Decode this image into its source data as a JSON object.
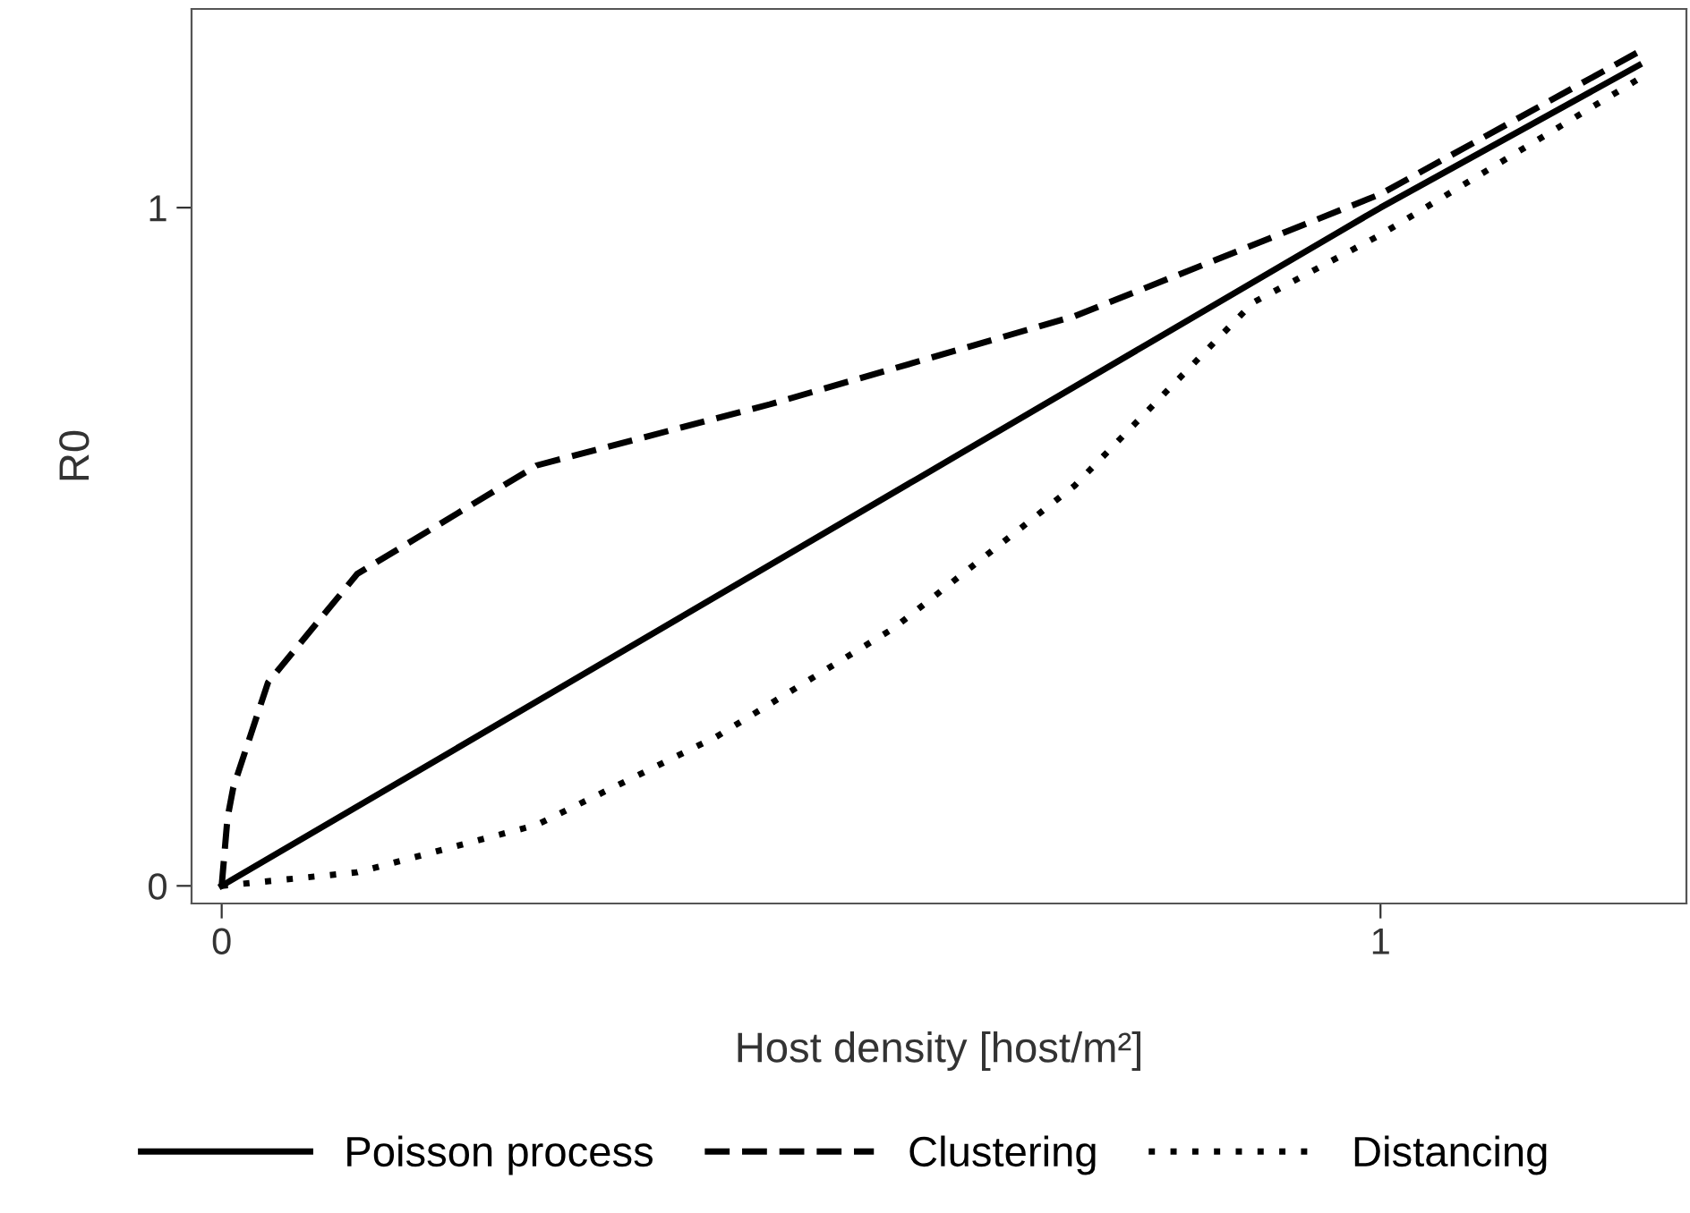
{
  "chart_data": {
    "type": "line",
    "xlabel": "Host density [host/m²]",
    "ylabel": "R0",
    "xlim": [
      -0.026,
      1.264
    ],
    "ylim": [
      -0.026,
      1.293
    ],
    "xticks": [
      0,
      1
    ],
    "yticks": [
      0,
      1
    ],
    "grid": false,
    "legend": "bottom",
    "marker": "none",
    "series": [
      {
        "name": "Poisson process",
        "color": "#000000",
        "line_style": "solid",
        "x": [
          0,
          0.2,
          0.4,
          0.6,
          0.8,
          1,
          1.223
        ],
        "values": [
          0,
          0.2,
          0.4,
          0.6,
          0.8,
          1,
          1.21
        ]
      },
      {
        "name": "Clustering",
        "color": "#000000",
        "line_style": "dashed",
        "x": [
          0,
          0.005,
          0.01,
          0.04,
          0.117,
          0.272,
          0.473,
          0.736,
          1,
          1.223
        ],
        "values": [
          0,
          0.1,
          0.145,
          0.3,
          0.46,
          0.62,
          0.71,
          0.84,
          1.02,
          1.23
        ]
      },
      {
        "name": "Distancing",
        "color": "#000000",
        "line_style": "dotted",
        "x": [
          0,
          0.117,
          0.272,
          0.427,
          0.58,
          0.736,
          0.89,
          1,
          1.223
        ],
        "values": [
          0,
          0.02,
          0.09,
          0.22,
          0.38,
          0.59,
          0.86,
          0.96,
          1.19
        ]
      }
    ]
  }
}
